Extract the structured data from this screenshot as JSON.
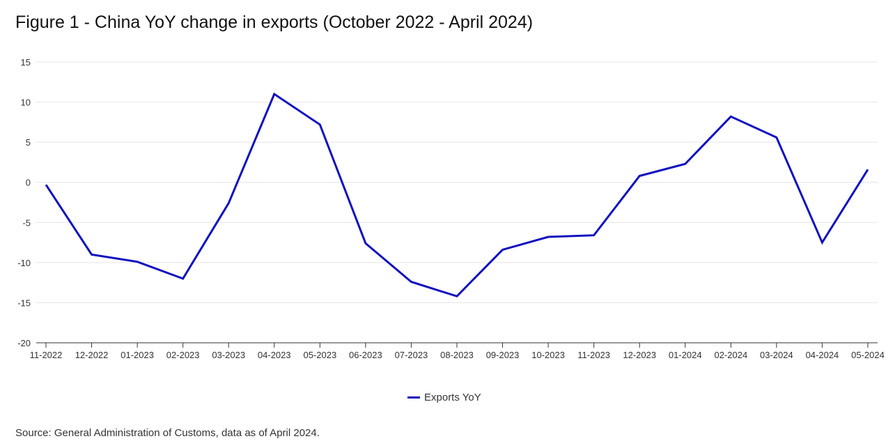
{
  "chart_data": {
    "type": "line",
    "title": "Figure 1 - China YoY change in exports (October 2022 - April 2024)",
    "xlabel": "",
    "ylabel": "",
    "categories": [
      "11-2022",
      "12-2022",
      "01-2023",
      "02-2023",
      "03-2023",
      "04-2023",
      "05-2023",
      "06-2023",
      "07-2023",
      "08-2023",
      "09-2023",
      "10-2023",
      "11-2023",
      "12-2023",
      "01-2024",
      "02-2024",
      "03-2024",
      "04-2024",
      "05-2024"
    ],
    "series": [
      {
        "name": "Exports YoY",
        "color": "#1010c0",
        "values": [
          -0.3,
          -9.0,
          -9.9,
          -12.0,
          -2.6,
          11.0,
          7.2,
          -7.6,
          -12.4,
          -14.2,
          -8.4,
          -6.8,
          -6.6,
          0.8,
          2.3,
          8.2,
          5.6,
          -7.5,
          1.6
        ]
      }
    ],
    "ylim": [
      -20,
      15
    ],
    "yticks": [
      15,
      10,
      5,
      0,
      -5,
      -10,
      -15,
      -20
    ],
    "grid": true,
    "legend_position": "bottom"
  },
  "source": "Source: General Administration of Customs, data as of April 2024."
}
